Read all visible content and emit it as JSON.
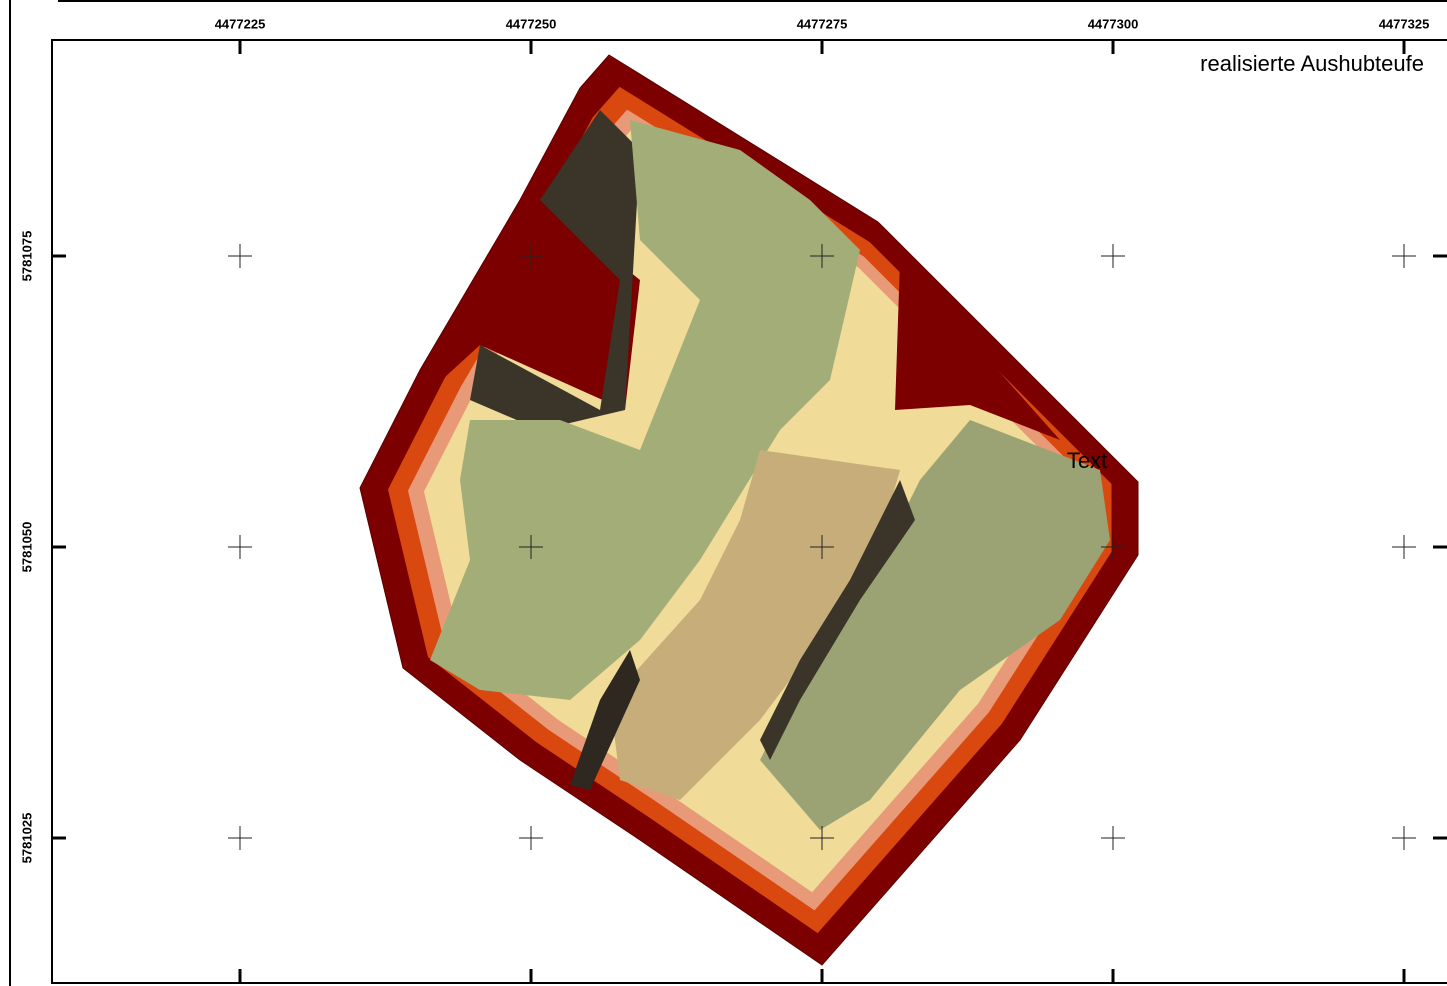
{
  "map": {
    "title": "realisierte Aushubteufe",
    "annotation": "Text",
    "x_ticks": [
      4477225,
      4477250,
      4477275,
      4477300,
      4477325
    ],
    "y_ticks": [
      5781075,
      5781050,
      5781025
    ]
  }
}
